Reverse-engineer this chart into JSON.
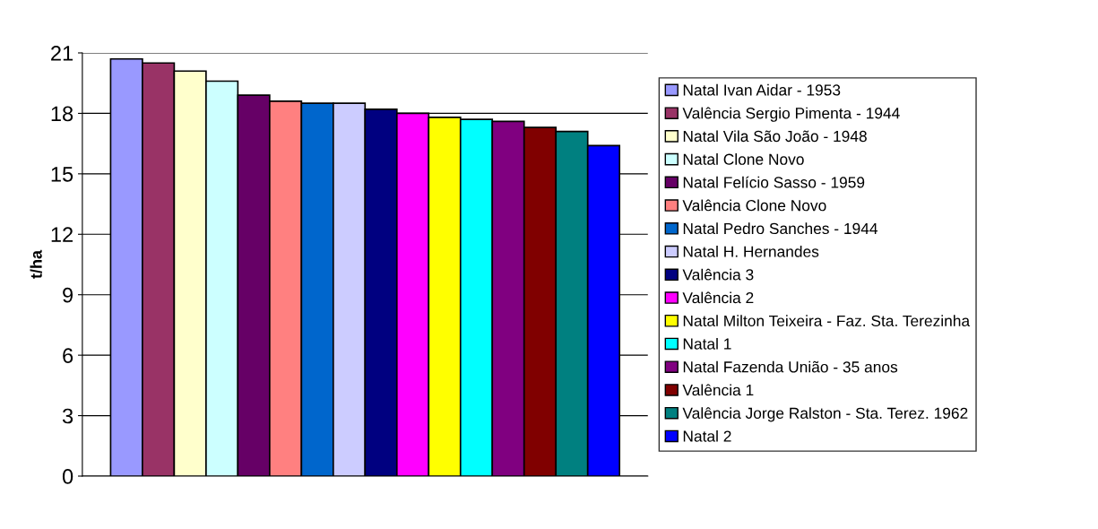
{
  "chart_data": {
    "type": "bar",
    "ylabel": "t/ha",
    "categories": [
      null
    ],
    "series": [
      {
        "name": "Natal Ivan Aidar - 1953",
        "color": "#9999ff",
        "values": [
          20.7
        ]
      },
      {
        "name": "Valência Sergio Pimenta - 1944",
        "color": "#993366",
        "values": [
          20.5
        ]
      },
      {
        "name": "Natal Vila São João - 1948",
        "color": "#ffffcc",
        "values": [
          20.1
        ]
      },
      {
        "name": "Natal Clone Novo",
        "color": "#ccffff",
        "values": [
          19.6
        ]
      },
      {
        "name": "Natal Felício Sasso - 1959",
        "color": "#660066",
        "values": [
          18.9
        ]
      },
      {
        "name": "Valência Clone Novo",
        "color": "#ff8080",
        "values": [
          18.6
        ]
      },
      {
        "name": "Natal Pedro Sanches - 1944",
        "color": "#0066cc",
        "values": [
          18.5
        ]
      },
      {
        "name": "Natal H. Hernandes",
        "color": "#ccccff",
        "values": [
          18.5
        ]
      },
      {
        "name": "Valência 3",
        "color": "#000080",
        "values": [
          18.2
        ]
      },
      {
        "name": "Valência 2",
        "color": "#ff00ff",
        "values": [
          18.0
        ]
      },
      {
        "name": "Natal Milton Teixeira - Faz. Sta. Terezinha",
        "color": "#ffff00",
        "values": [
          17.8
        ]
      },
      {
        "name": "Natal 1",
        "color": "#00ffff",
        "values": [
          17.7
        ]
      },
      {
        "name": "Natal Fazenda União - 35 anos",
        "color": "#800080",
        "values": [
          17.6
        ]
      },
      {
        "name": "Valência 1",
        "color": "#800000",
        "values": [
          17.3
        ]
      },
      {
        "name": "Valência Jorge Ralston - Sta. Terez. 1962",
        "color": "#008080",
        "values": [
          17.1
        ]
      },
      {
        "name": "Natal 2",
        "color": "#0000ff",
        "values": [
          16.4
        ]
      }
    ],
    "ylim": [
      0,
      21
    ],
    "yticks": [
      0,
      3,
      6,
      9,
      12,
      15,
      18,
      21
    ],
    "grid": "y",
    "legend": "right"
  }
}
